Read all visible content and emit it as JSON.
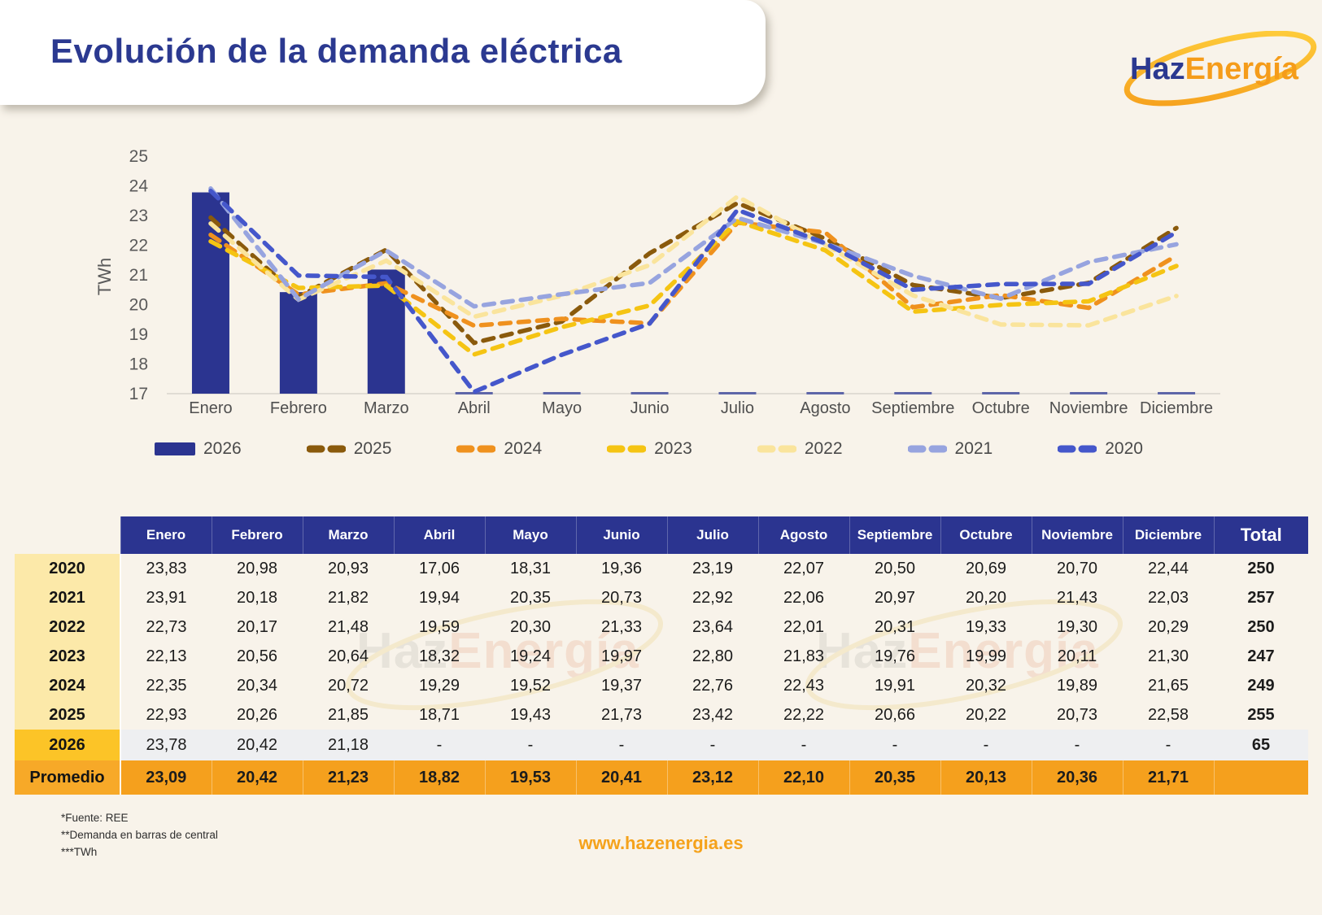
{
  "header": {
    "title": "Evolución de la demanda eléctrica"
  },
  "logo": {
    "part1": "Haz",
    "part2": "Energía"
  },
  "colors": {
    "navy": "#2B3490",
    "title_blue": "#2B3990",
    "page_bg": "#F8F3EA",
    "year_col": "#FCE9A9",
    "year_2026": "#FCC427",
    "row_2026": "#EEEFF1",
    "avg_row": "#F5A01D",
    "website_orange": "#F5A21B",
    "axis_gray": "#E0DCD4",
    "stub_navy": "#5E66A8"
  },
  "chart_data": {
    "type": "combo-bar-line",
    "title": "Evolución de la demanda eléctrica",
    "ylabel": "TWh",
    "ylim": [
      17,
      25
    ],
    "yticks": [
      17,
      18,
      19,
      20,
      21,
      22,
      23,
      24,
      25
    ],
    "grid": false,
    "legend_position": "bottom",
    "categories": [
      "Enero",
      "Febrero",
      "Marzo",
      "Abril",
      "Mayo",
      "Junio",
      "Julio",
      "Agosto",
      "Septiembre",
      "Octubre",
      "Noviembre",
      "Diciembre"
    ],
    "bar_series": {
      "name": "2026",
      "color": "#2B3490",
      "values": [
        23.78,
        20.42,
        21.18,
        null,
        null,
        null,
        null,
        null,
        null,
        null,
        null,
        null
      ]
    },
    "line_series": [
      {
        "name": "2025",
        "color": "#8A5A0C",
        "values": [
          22.93,
          20.26,
          21.85,
          18.71,
          19.43,
          21.73,
          23.42,
          22.22,
          20.66,
          20.22,
          20.73,
          22.58
        ]
      },
      {
        "name": "2024",
        "color": "#EF911E",
        "values": [
          22.35,
          20.34,
          20.72,
          19.29,
          19.52,
          19.37,
          22.76,
          22.43,
          19.91,
          20.32,
          19.89,
          21.65
        ]
      },
      {
        "name": "2023",
        "color": "#F5C413",
        "values": [
          22.13,
          20.56,
          20.64,
          18.32,
          19.24,
          19.97,
          22.8,
          21.83,
          19.76,
          19.99,
          20.11,
          21.3
        ]
      },
      {
        "name": "2022",
        "color": "#FAE49C",
        "values": [
          22.73,
          20.17,
          21.48,
          19.59,
          20.3,
          21.33,
          23.64,
          22.01,
          20.31,
          19.33,
          19.3,
          20.29
        ]
      },
      {
        "name": "2021",
        "color": "#97A4DF",
        "values": [
          23.91,
          20.18,
          21.82,
          19.94,
          20.35,
          20.73,
          22.92,
          22.06,
          20.97,
          20.2,
          21.43,
          22.03
        ]
      },
      {
        "name": "2020",
        "color": "#4557CB",
        "values": [
          23.83,
          20.98,
          20.93,
          17.06,
          18.31,
          19.36,
          23.19,
          22.07,
          20.5,
          20.69,
          20.7,
          22.44
        ]
      }
    ]
  },
  "table": {
    "columns": [
      "Enero",
      "Febrero",
      "Marzo",
      "Abril",
      "Mayo",
      "Junio",
      "Julio",
      "Agosto",
      "Septiembre",
      "Octubre",
      "Noviembre",
      "Diciembre"
    ],
    "total_label": "Total",
    "rows": [
      {
        "label": "2020",
        "cells": [
          "23,83",
          "20,98",
          "20,93",
          "17,06",
          "18,31",
          "19,36",
          "23,19",
          "22,07",
          "20,50",
          "20,69",
          "20,70",
          "22,44"
        ],
        "total": "250",
        "highlight": false
      },
      {
        "label": "2021",
        "cells": [
          "23,91",
          "20,18",
          "21,82",
          "19,94",
          "20,35",
          "20,73",
          "22,92",
          "22,06",
          "20,97",
          "20,20",
          "21,43",
          "22,03"
        ],
        "total": "257",
        "highlight": false
      },
      {
        "label": "2022",
        "cells": [
          "22,73",
          "20,17",
          "21,48",
          "19,59",
          "20,30",
          "21,33",
          "23,64",
          "22,01",
          "20,31",
          "19,33",
          "19,30",
          "20,29"
        ],
        "total": "250",
        "highlight": false
      },
      {
        "label": "2023",
        "cells": [
          "22,13",
          "20,56",
          "20,64",
          "18,32",
          "19,24",
          "19,97",
          "22,80",
          "21,83",
          "19,76",
          "19,99",
          "20,11",
          "21,30"
        ],
        "total": "247",
        "highlight": false
      },
      {
        "label": "2024",
        "cells": [
          "22,35",
          "20,34",
          "20,72",
          "19,29",
          "19,52",
          "19,37",
          "22,76",
          "22,43",
          "19,91",
          "20,32",
          "19,89",
          "21,65"
        ],
        "total": "249",
        "highlight": false
      },
      {
        "label": "2025",
        "cells": [
          "22,93",
          "20,26",
          "21,85",
          "18,71",
          "19,43",
          "21,73",
          "23,42",
          "22,22",
          "20,66",
          "20,22",
          "20,73",
          "22,58"
        ],
        "total": "255",
        "highlight": false
      },
      {
        "label": "2026",
        "cells": [
          "23,78",
          "20,42",
          "21,18",
          "-",
          "-",
          "-",
          "-",
          "-",
          "-",
          "-",
          "-",
          "-"
        ],
        "total": "65",
        "highlight": true
      }
    ],
    "average_row": {
      "label": "Promedio",
      "cells": [
        "23,09",
        "20,42",
        "21,23",
        "18,82",
        "19,53",
        "20,41",
        "23,12",
        "22,10",
        "20,35",
        "20,13",
        "20,36",
        "21,71"
      ],
      "total": ""
    }
  },
  "watermark": {
    "part1": "Haz",
    "part2": "Energía"
  },
  "footnotes": [
    "*Fuente: REE",
    "**Demanda en barras de central",
    "***TWh"
  ],
  "website": "www.hazenergia.es"
}
